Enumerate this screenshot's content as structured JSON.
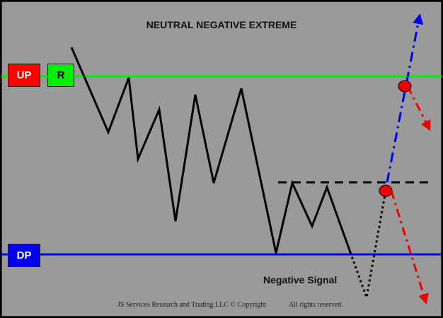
{
  "title": "NEUTRAL NEGATIVE EXTREME",
  "levels": {
    "up": {
      "label": "UP",
      "color": "#ff0000"
    },
    "r": {
      "label": "R",
      "color": "#00ee00"
    },
    "dp": {
      "label": "DP",
      "color": "#0000ee"
    }
  },
  "signal_label": "Negative Signal",
  "footer": {
    "copyright": "JS Services Research and Trading LLC © Copyright",
    "rights": "All rights reserved."
  },
  "colors": {
    "background": "#9a9a9a",
    "resistance_line": "#00ee00",
    "support_line": "#0000ee",
    "price_path": "#000000",
    "bullish_arrow": "#0000ee",
    "bearish_arrow": "#ee0000",
    "signal_marker": "#ee0000"
  }
}
